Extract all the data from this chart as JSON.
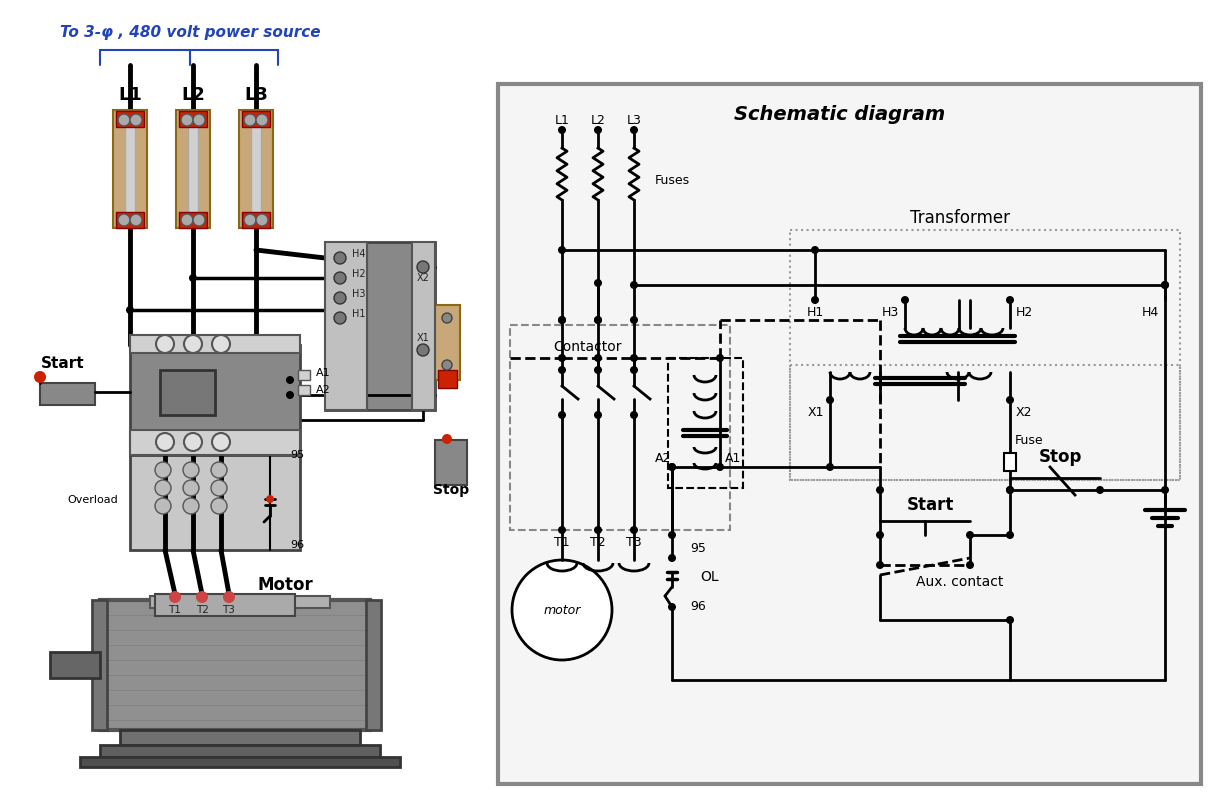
{
  "bg_color": "#ffffff",
  "blue_color": "#2244bb",
  "red_color": "#cc2200",
  "tan_color": "#c8a878",
  "gray_color": "#909090",
  "dark_gray": "#555555",
  "mid_gray": "#aaaaaa",
  "light_gray": "#d8d8d8",
  "schematic_title": "Schematic diagram",
  "power_label": "To 3-φ , 480 volt power source",
  "fuse_labels": [
    "L1",
    "L2",
    "L3"
  ],
  "t_labels": [
    "T1",
    "T2",
    "T3"
  ],
  "motor_label": "Motor",
  "overload_label": "Overload",
  "start_label": "Start",
  "stop_label": "Stop"
}
